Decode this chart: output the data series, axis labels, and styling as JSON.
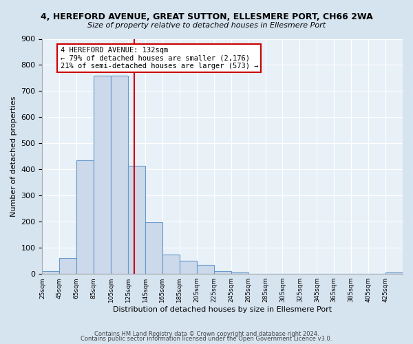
{
  "title": "4, HEREFORD AVENUE, GREAT SUTTON, ELLESMERE PORT, CH66 2WA",
  "subtitle": "Size of property relative to detached houses in Ellesmere Port",
  "xlabel": "Distribution of detached houses by size in Ellesmere Port",
  "ylabel": "Number of detached properties",
  "bar_edges": [
    25,
    45,
    65,
    85,
    105,
    125,
    145,
    165,
    185,
    205,
    225,
    245,
    265,
    285,
    305,
    325,
    345,
    365,
    385,
    405,
    425,
    445
  ],
  "bar_heights": [
    10,
    60,
    435,
    760,
    760,
    415,
    197,
    75,
    50,
    35,
    10,
    5,
    0,
    0,
    0,
    0,
    0,
    0,
    0,
    0,
    5
  ],
  "bar_color": "#ccd9ea",
  "bar_edge_color": "#6699cc",
  "property_size": 132,
  "vline_color": "#cc0000",
  "annotation_line1": "4 HEREFORD AVENUE: 132sqm",
  "annotation_line2": "← 79% of detached houses are smaller (2,176)",
  "annotation_line3": "21% of semi-detached houses are larger (573) →",
  "annotation_box_color": "#ffffff",
  "annotation_box_edge_color": "#cc0000",
  "ylim": [
    0,
    900
  ],
  "xlim": [
    25,
    445
  ],
  "fig_bg_color": "#d6e4f0",
  "plot_bg_color": "#e8f0f8",
  "footer_line1": "Contains HM Land Registry data © Crown copyright and database right 2024.",
  "footer_line2": "Contains public sector information licensed under the Open Government Licence v3.0.",
  "tick_labels": [
    "25sqm",
    "45sqm",
    "65sqm",
    "85sqm",
    "105sqm",
    "125sqm",
    "145sqm",
    "165sqm",
    "185sqm",
    "205sqm",
    "225sqm",
    "245sqm",
    "265sqm",
    "285sqm",
    "305sqm",
    "325sqm",
    "345sqm",
    "365sqm",
    "385sqm",
    "405sqm",
    "425sqm"
  ],
  "yticks": [
    0,
    100,
    200,
    300,
    400,
    500,
    600,
    700,
    800,
    900
  ]
}
